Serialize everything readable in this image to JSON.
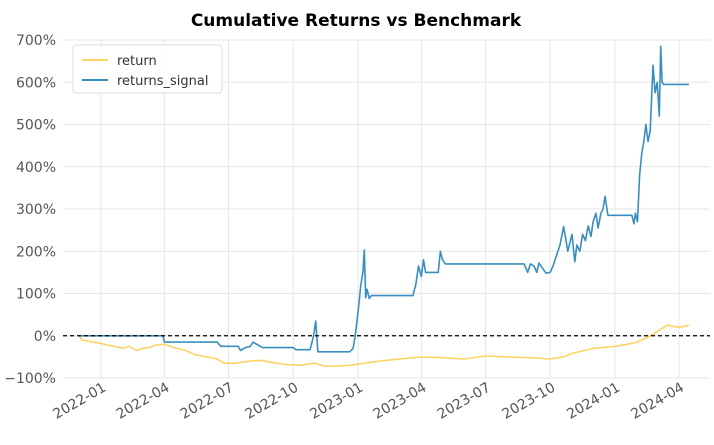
{
  "chart_data": {
    "type": "line",
    "title": "Cumulative Returns vs Benchmark",
    "xlabel": "",
    "ylabel": "",
    "ylim": [
      -100,
      700
    ],
    "xlim": [
      "2021-11-08",
      "2024-05-15"
    ],
    "grid": true,
    "legend_position": "top-left",
    "y_ticks": [
      {
        "value": -100,
        "label": "−100%"
      },
      {
        "value": 0,
        "label": "0%"
      },
      {
        "value": 100,
        "label": "100%"
      },
      {
        "value": 200,
        "label": "200%"
      },
      {
        "value": 300,
        "label": "300%"
      },
      {
        "value": 400,
        "label": "400%"
      },
      {
        "value": 500,
        "label": "500%"
      },
      {
        "value": 600,
        "label": "600%"
      },
      {
        "value": 700,
        "label": "700%"
      }
    ],
    "x_ticks": [
      {
        "date": "2022-01-01",
        "label": "2022-01"
      },
      {
        "date": "2022-04-01",
        "label": "2022-04"
      },
      {
        "date": "2022-07-01",
        "label": "2022-07"
      },
      {
        "date": "2022-10-01",
        "label": "2022-10"
      },
      {
        "date": "2023-01-01",
        "label": "2023-01"
      },
      {
        "date": "2023-04-01",
        "label": "2023-04"
      },
      {
        "date": "2023-07-01",
        "label": "2023-07"
      },
      {
        "date": "2023-10-01",
        "label": "2023-10"
      },
      {
        "date": "2024-01-01",
        "label": "2024-01"
      },
      {
        "date": "2024-04-01",
        "label": "2024-04"
      }
    ],
    "reference_line": {
      "y": 0,
      "style": "dashed",
      "color": "#000000"
    },
    "series": [
      {
        "name": "return",
        "color": "#fdd365",
        "points": [
          [
            "2021-12-01",
            0
          ],
          [
            "2021-12-05",
            -10
          ],
          [
            "2021-12-12",
            -12
          ],
          [
            "2021-12-20",
            -15
          ],
          [
            "2022-01-01",
            -18
          ],
          [
            "2022-01-10",
            -22
          ],
          [
            "2022-01-20",
            -25
          ],
          [
            "2022-02-01",
            -30
          ],
          [
            "2022-02-10",
            -25
          ],
          [
            "2022-02-20",
            -35
          ],
          [
            "2022-03-01",
            -30
          ],
          [
            "2022-03-10",
            -28
          ],
          [
            "2022-03-20",
            -22
          ],
          [
            "2022-04-01",
            -20
          ],
          [
            "2022-04-15",
            -28
          ],
          [
            "2022-05-01",
            -35
          ],
          [
            "2022-05-15",
            -45
          ],
          [
            "2022-06-01",
            -50
          ],
          [
            "2022-06-15",
            -55
          ],
          [
            "2022-06-25",
            -65
          ],
          [
            "2022-07-10",
            -65
          ],
          [
            "2022-08-01",
            -60
          ],
          [
            "2022-08-15",
            -58
          ],
          [
            "2022-09-01",
            -63
          ],
          [
            "2022-09-20",
            -68
          ],
          [
            "2022-10-10",
            -70
          ],
          [
            "2022-11-01",
            -65
          ],
          [
            "2022-11-15",
            -72
          ],
          [
            "2022-12-01",
            -72
          ],
          [
            "2022-12-20",
            -70
          ],
          [
            "2023-01-10",
            -65
          ],
          [
            "2023-02-01",
            -60
          ],
          [
            "2023-03-01",
            -55
          ],
          [
            "2023-04-01",
            -50
          ],
          [
            "2023-05-01",
            -52
          ],
          [
            "2023-06-01",
            -55
          ],
          [
            "2023-07-01",
            -48
          ],
          [
            "2023-08-01",
            -50
          ],
          [
            "2023-09-01",
            -52
          ],
          [
            "2023-10-01",
            -55
          ],
          [
            "2023-10-20",
            -50
          ],
          [
            "2023-11-01",
            -42
          ],
          [
            "2023-12-01",
            -30
          ],
          [
            "2024-01-01",
            -25
          ],
          [
            "2024-01-20",
            -20
          ],
          [
            "2024-02-01",
            -15
          ],
          [
            "2024-02-15",
            -5
          ],
          [
            "2024-03-01",
            10
          ],
          [
            "2024-03-15",
            25
          ],
          [
            "2024-04-01",
            20
          ],
          [
            "2024-04-15",
            25
          ]
        ]
      },
      {
        "name": "returns_signal",
        "color": "#3a8ebf",
        "points": [
          [
            "2021-12-01",
            0
          ],
          [
            "2022-01-01",
            0
          ],
          [
            "2022-03-30",
            0
          ],
          [
            "2022-04-01",
            -15
          ],
          [
            "2022-06-15",
            -15
          ],
          [
            "2022-06-20",
            -25
          ],
          [
            "2022-07-15",
            -25
          ],
          [
            "2022-07-18",
            -35
          ],
          [
            "2022-07-25",
            -28
          ],
          [
            "2022-08-01",
            -25
          ],
          [
            "2022-08-05",
            -15
          ],
          [
            "2022-08-10",
            -20
          ],
          [
            "2022-08-18",
            -28
          ],
          [
            "2022-10-01",
            -28
          ],
          [
            "2022-10-05",
            -33
          ],
          [
            "2022-10-25",
            -33
          ],
          [
            "2022-10-30",
            0
          ],
          [
            "2022-11-02",
            35
          ],
          [
            "2022-11-05",
            -38
          ],
          [
            "2022-12-20",
            -38
          ],
          [
            "2022-12-25",
            -30
          ],
          [
            "2022-12-28",
            0
          ],
          [
            "2023-01-02",
            70
          ],
          [
            "2023-01-05",
            120
          ],
          [
            "2023-01-08",
            150
          ],
          [
            "2023-01-10",
            203
          ],
          [
            "2023-01-12",
            90
          ],
          [
            "2023-01-14",
            110
          ],
          [
            "2023-01-17",
            88
          ],
          [
            "2023-01-20",
            95
          ],
          [
            "2023-03-20",
            95
          ],
          [
            "2023-03-24",
            120
          ],
          [
            "2023-03-28",
            165
          ],
          [
            "2023-04-01",
            140
          ],
          [
            "2023-04-04",
            180
          ],
          [
            "2023-04-07",
            150
          ],
          [
            "2023-04-25",
            150
          ],
          [
            "2023-04-28",
            200
          ],
          [
            "2023-05-01",
            180
          ],
          [
            "2023-05-05",
            170
          ],
          [
            "2023-07-30",
            170
          ],
          [
            "2023-08-05",
            170
          ],
          [
            "2023-08-25",
            170
          ],
          [
            "2023-08-30",
            150
          ],
          [
            "2023-09-03",
            170
          ],
          [
            "2023-09-08",
            165
          ],
          [
            "2023-09-12",
            150
          ],
          [
            "2023-09-15",
            172
          ],
          [
            "2023-09-20",
            160
          ],
          [
            "2023-09-25",
            148
          ],
          [
            "2023-10-01",
            150
          ],
          [
            "2023-10-05",
            165
          ],
          [
            "2023-10-10",
            190
          ],
          [
            "2023-10-15",
            215
          ],
          [
            "2023-10-20",
            258
          ],
          [
            "2023-10-23",
            230
          ],
          [
            "2023-10-26",
            200
          ],
          [
            "2023-11-01",
            240
          ],
          [
            "2023-11-05",
            175
          ],
          [
            "2023-11-08",
            215
          ],
          [
            "2023-11-12",
            200
          ],
          [
            "2023-11-16",
            240
          ],
          [
            "2023-11-20",
            225
          ],
          [
            "2023-11-24",
            260
          ],
          [
            "2023-11-28",
            235
          ],
          [
            "2023-12-01",
            270
          ],
          [
            "2023-12-05",
            290
          ],
          [
            "2023-12-08",
            255
          ],
          [
            "2023-12-12",
            290
          ],
          [
            "2023-12-15",
            300
          ],
          [
            "2023-12-18",
            330
          ],
          [
            "2023-12-22",
            285
          ],
          [
            "2024-01-25",
            285
          ],
          [
            "2024-01-28",
            265
          ],
          [
            "2024-01-30",
            290
          ],
          [
            "2024-02-02",
            270
          ],
          [
            "2024-02-05",
            380
          ],
          [
            "2024-02-08",
            430
          ],
          [
            "2024-02-11",
            460
          ],
          [
            "2024-02-14",
            500
          ],
          [
            "2024-02-17",
            460
          ],
          [
            "2024-02-20",
            485
          ],
          [
            "2024-02-24",
            640
          ],
          [
            "2024-02-27",
            575
          ],
          [
            "2024-03-01",
            600
          ],
          [
            "2024-03-04",
            520
          ],
          [
            "2024-03-06",
            685
          ],
          [
            "2024-03-08",
            600
          ],
          [
            "2024-03-10",
            595
          ],
          [
            "2024-04-15",
            595
          ]
        ]
      }
    ]
  }
}
